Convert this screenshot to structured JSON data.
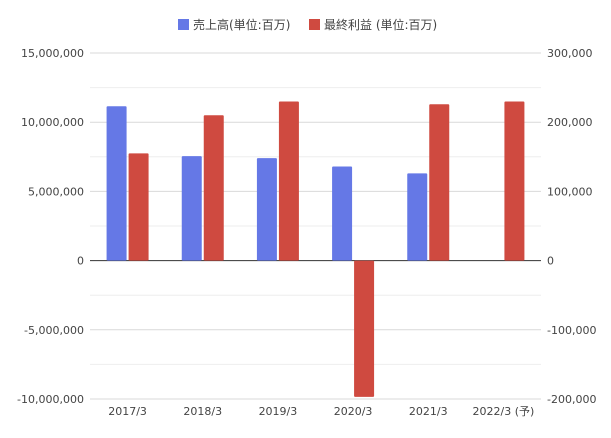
{
  "chart_data": {
    "type": "bar",
    "categories": [
      "2017/3",
      "2018/3",
      "2019/3",
      "2020/3",
      "2021/3",
      "2022/3 (予)"
    ],
    "series": [
      {
        "name": "売上高(単位:百万)",
        "axis": "left",
        "color": "#6578e6",
        "values": [
          11150000,
          7550000,
          7400000,
          6800000,
          6300000,
          null
        ]
      },
      {
        "name": "最終利益 (単位:百万)",
        "axis": "right",
        "color": "#cf4a40",
        "values": [
          155000,
          210000,
          230000,
          -197000,
          226000,
          230000
        ]
      }
    ],
    "left_axis": {
      "ylim": [
        -10000000,
        15000000
      ],
      "ticks": [
        -10000000,
        -5000000,
        0,
        5000000,
        10000000,
        15000000
      ],
      "tick_labels": [
        "-10,000,000",
        "-5,000,000",
        "0",
        "5,000,000",
        "10,000,000",
        "15,000,000"
      ]
    },
    "right_axis": {
      "ylim": [
        -200000,
        300000
      ],
      "ticks": [
        -200000,
        -100000,
        0,
        100000,
        200000,
        300000
      ],
      "tick_labels": [
        "-200,000",
        "-100,000",
        "0",
        "100,000",
        "200,000",
        "300,000"
      ]
    },
    "grid": true,
    "legend_position": "top"
  }
}
